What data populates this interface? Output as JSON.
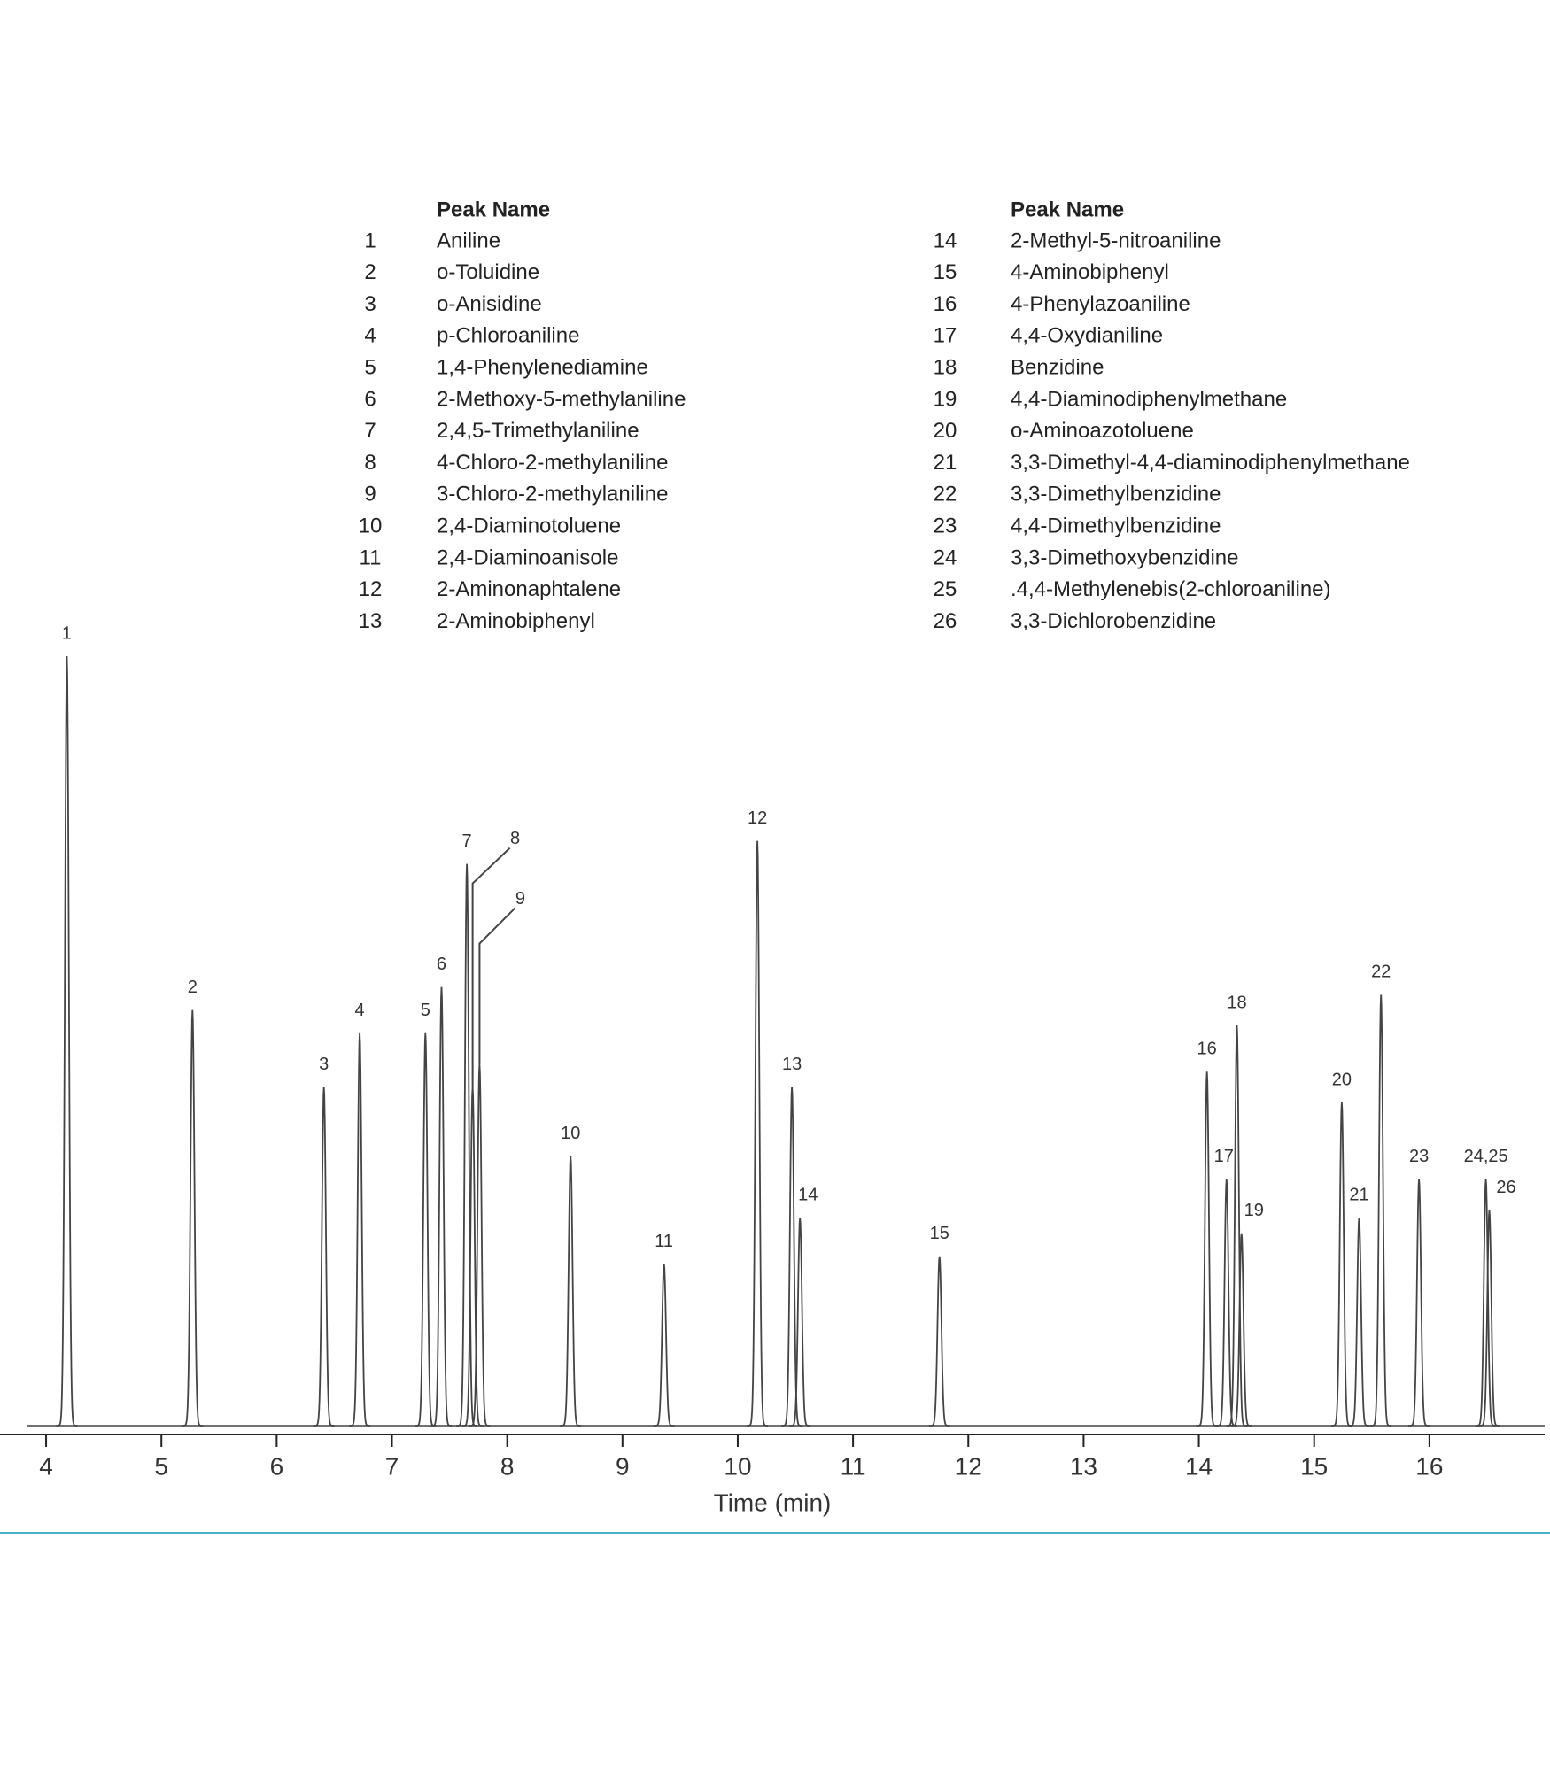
{
  "chart_data": {
    "type": "chromatogram",
    "xlabel": "Time (min)",
    "xlim": [
      3.6,
      17.0
    ],
    "xticks": [
      4,
      5,
      6,
      7,
      8,
      9,
      10,
      11,
      12,
      13,
      14,
      15,
      16
    ],
    "ylim": [
      0,
      100
    ],
    "color": "#444444",
    "peak_labels": [
      "1",
      "2",
      "3",
      "4",
      "5",
      "6",
      "7",
      "8",
      "9",
      "10",
      "11",
      "12",
      "13",
      "14",
      "15",
      "16",
      "17",
      "18",
      "19",
      "20",
      "21",
      "22",
      "23",
      "24,25",
      "26"
    ],
    "x": [
      4.18,
      5.27,
      6.41,
      6.72,
      7.29,
      7.43,
      7.65,
      7.7,
      7.76,
      8.55,
      9.36,
      10.17,
      10.47,
      10.54,
      11.75,
      14.07,
      14.24,
      14.33,
      14.37,
      15.24,
      15.39,
      15.58,
      15.91,
      16.49,
      16.52
    ],
    "values": [
      100,
      54,
      44,
      51,
      51,
      57,
      73,
      44,
      47,
      35,
      21,
      76,
      44,
      27,
      22,
      46,
      32,
      52,
      25,
      42,
      27,
      56,
      32,
      32,
      28
    ],
    "legend": {
      "header": "Peak Name",
      "numbers": [
        1,
        2,
        3,
        4,
        5,
        6,
        7,
        8,
        9,
        10,
        11,
        12,
        13,
        14,
        15,
        16,
        17,
        18,
        19,
        20,
        21,
        22,
        23,
        24,
        25,
        26
      ],
      "names": [
        "Aniline",
        "o-Toluidine",
        "o-Anisidine",
        "p-Chloroaniline",
        "1,4-Phenylenediamine",
        "2-Methoxy-5-methylaniline",
        "2,4,5-Trimethylaniline",
        "4-Chloro-2-methylaniline",
        "3-Chloro-2-methylaniline",
        "2,4-Diaminotoluene",
        "2,4-Diaminoanisole",
        "2-Aminonaphtalene",
        "2-Aminobiphenyl",
        "2-Methyl-5-nitroaniline",
        "4-Aminobiphenyl",
        "4-Phenylazoaniline",
        "4,4-Oxydianiline",
        "Benzidine",
        "4,4-Diaminodiphenylmethane",
        "o-Aminoazotoluene",
        "3,3-Dimethyl-4,4-diaminodiphenylmethane",
        "3,3-Dimethylbenzidine",
        "4,4-Dimethylbenzidine",
        "3,3-Dimethoxybenzidine",
        ".4,4-Methylenebis(2-chloroaniline)",
        "3,3-Dichlorobenzidine"
      ]
    }
  }
}
